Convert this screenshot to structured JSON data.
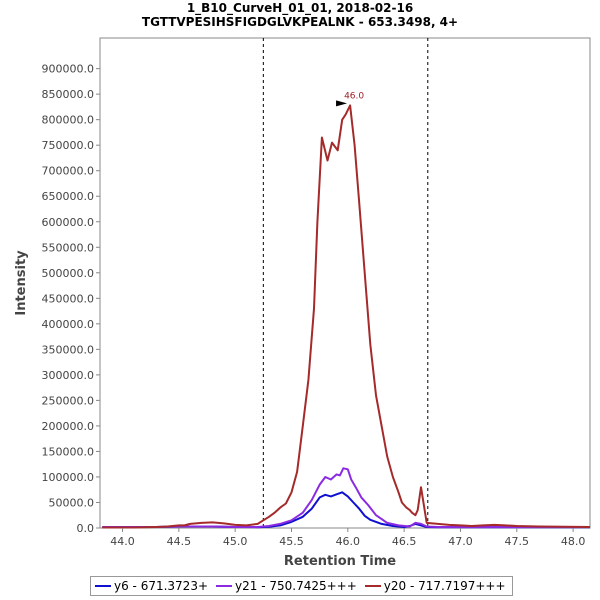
{
  "chart_data": {
    "type": "line",
    "title": "1_B10_CurveH_01_01, 2018-02-16",
    "subtitle": "TGTTVPESIHSFIGDGLVKPEALNK - 653.3498, 4+",
    "xlabel": "Retention Time",
    "ylabel": "Intensity",
    "xlim": [
      43.8,
      48.15
    ],
    "ylim": [
      0,
      960000
    ],
    "xticks": [
      "44.0",
      "44.5",
      "45.0",
      "45.5",
      "46.0",
      "46.5",
      "47.0",
      "47.5",
      "48.0"
    ],
    "xtick_values": [
      44.0,
      44.5,
      45.0,
      45.5,
      46.0,
      46.5,
      47.0,
      47.5,
      48.0
    ],
    "yticks": [
      "0.0",
      "50000.0",
      "100000.0",
      "150000.0",
      "200000.0",
      "250000.0",
      "300000.0",
      "350000.0",
      "400000.0",
      "450000.0",
      "500000.0",
      "550000.0",
      "600000.0",
      "650000.0",
      "700000.0",
      "750000.0",
      "800000.0",
      "850000.0",
      "900000.0"
    ],
    "ytick_values": [
      0,
      50000,
      100000,
      150000,
      200000,
      250000,
      300000,
      350000,
      400000,
      450000,
      500000,
      550000,
      600000,
      650000,
      700000,
      750000,
      800000,
      850000,
      900000
    ],
    "integration_bounds": [
      45.25,
      46.71
    ],
    "peak_annotation": {
      "label": "46.0",
      "x": 46.02,
      "y": 828000
    },
    "series": [
      {
        "name": "y6 - 671.3723+",
        "color": "#1010d0",
        "x": [
          43.82,
          44.3,
          44.5,
          44.8,
          45.0,
          45.2,
          45.3,
          45.4,
          45.5,
          45.6,
          45.68,
          45.75,
          45.8,
          45.85,
          45.9,
          45.95,
          46.0,
          46.05,
          46.1,
          46.15,
          46.2,
          46.3,
          46.4,
          46.5,
          46.55,
          46.6,
          46.65,
          46.7,
          46.8,
          47.0,
          47.5,
          48.15
        ],
        "y": [
          2000,
          2000,
          3000,
          3000,
          2000,
          1500,
          2500,
          5000,
          12000,
          22000,
          38000,
          60000,
          65000,
          62000,
          66000,
          70000,
          62000,
          50000,
          38000,
          24000,
          16000,
          8000,
          4000,
          2000,
          4000,
          8000,
          5000,
          2000,
          1500,
          1500,
          1500,
          1500
        ]
      },
      {
        "name": "y21 - 750.7425+++",
        "color": "#8a2be2",
        "x": [
          43.82,
          44.3,
          44.5,
          44.8,
          45.0,
          45.2,
          45.3,
          45.4,
          45.5,
          45.6,
          45.68,
          45.75,
          45.8,
          45.85,
          45.9,
          45.93,
          45.96,
          46.0,
          46.03,
          46.07,
          46.12,
          46.18,
          46.25,
          46.35,
          46.45,
          46.55,
          46.6,
          46.65,
          46.7,
          46.8,
          47.0,
          47.5,
          48.15
        ],
        "y": [
          2000,
          2000,
          3000,
          3000,
          2000,
          2000,
          4000,
          8000,
          15000,
          30000,
          55000,
          85000,
          100000,
          95000,
          105000,
          103000,
          117000,
          115000,
          95000,
          80000,
          60000,
          45000,
          25000,
          10000,
          5000,
          3000,
          10000,
          8000,
          3000,
          2000,
          2000,
          2000,
          2000
        ]
      },
      {
        "name": "y20 - 717.7197+++",
        "color": "#a52a2a",
        "x": [
          43.82,
          44.1,
          44.3,
          44.4,
          44.5,
          44.55,
          44.6,
          44.7,
          44.8,
          44.9,
          45.0,
          45.1,
          45.2,
          45.25,
          45.3,
          45.35,
          45.4,
          45.45,
          45.5,
          45.55,
          45.6,
          45.65,
          45.7,
          45.73,
          45.77,
          45.82,
          45.86,
          45.91,
          45.95,
          45.98,
          46.02,
          46.06,
          46.1,
          46.15,
          46.2,
          46.25,
          46.3,
          46.35,
          46.4,
          46.45,
          46.48,
          46.52,
          46.55,
          46.57,
          46.6,
          46.62,
          46.65,
          46.7,
          46.8,
          46.9,
          47.0,
          47.1,
          47.2,
          47.3,
          47.4,
          47.5,
          47.7,
          48.15
        ],
        "y": [
          1000,
          1000,
          2000,
          3000,
          5000,
          5000,
          8000,
          10000,
          11000,
          9000,
          6000,
          5000,
          8000,
          15000,
          22000,
          30000,
          40000,
          48000,
          70000,
          110000,
          200000,
          290000,
          430000,
          600000,
          765000,
          720000,
          755000,
          740000,
          800000,
          810000,
          828000,
          750000,
          640000,
          500000,
          360000,
          260000,
          200000,
          140000,
          100000,
          70000,
          50000,
          40000,
          35000,
          30000,
          25000,
          35000,
          80000,
          10000,
          8000,
          6000,
          5000,
          4000,
          5000,
          6000,
          5000,
          4000,
          3000,
          2000
        ]
      }
    ]
  }
}
